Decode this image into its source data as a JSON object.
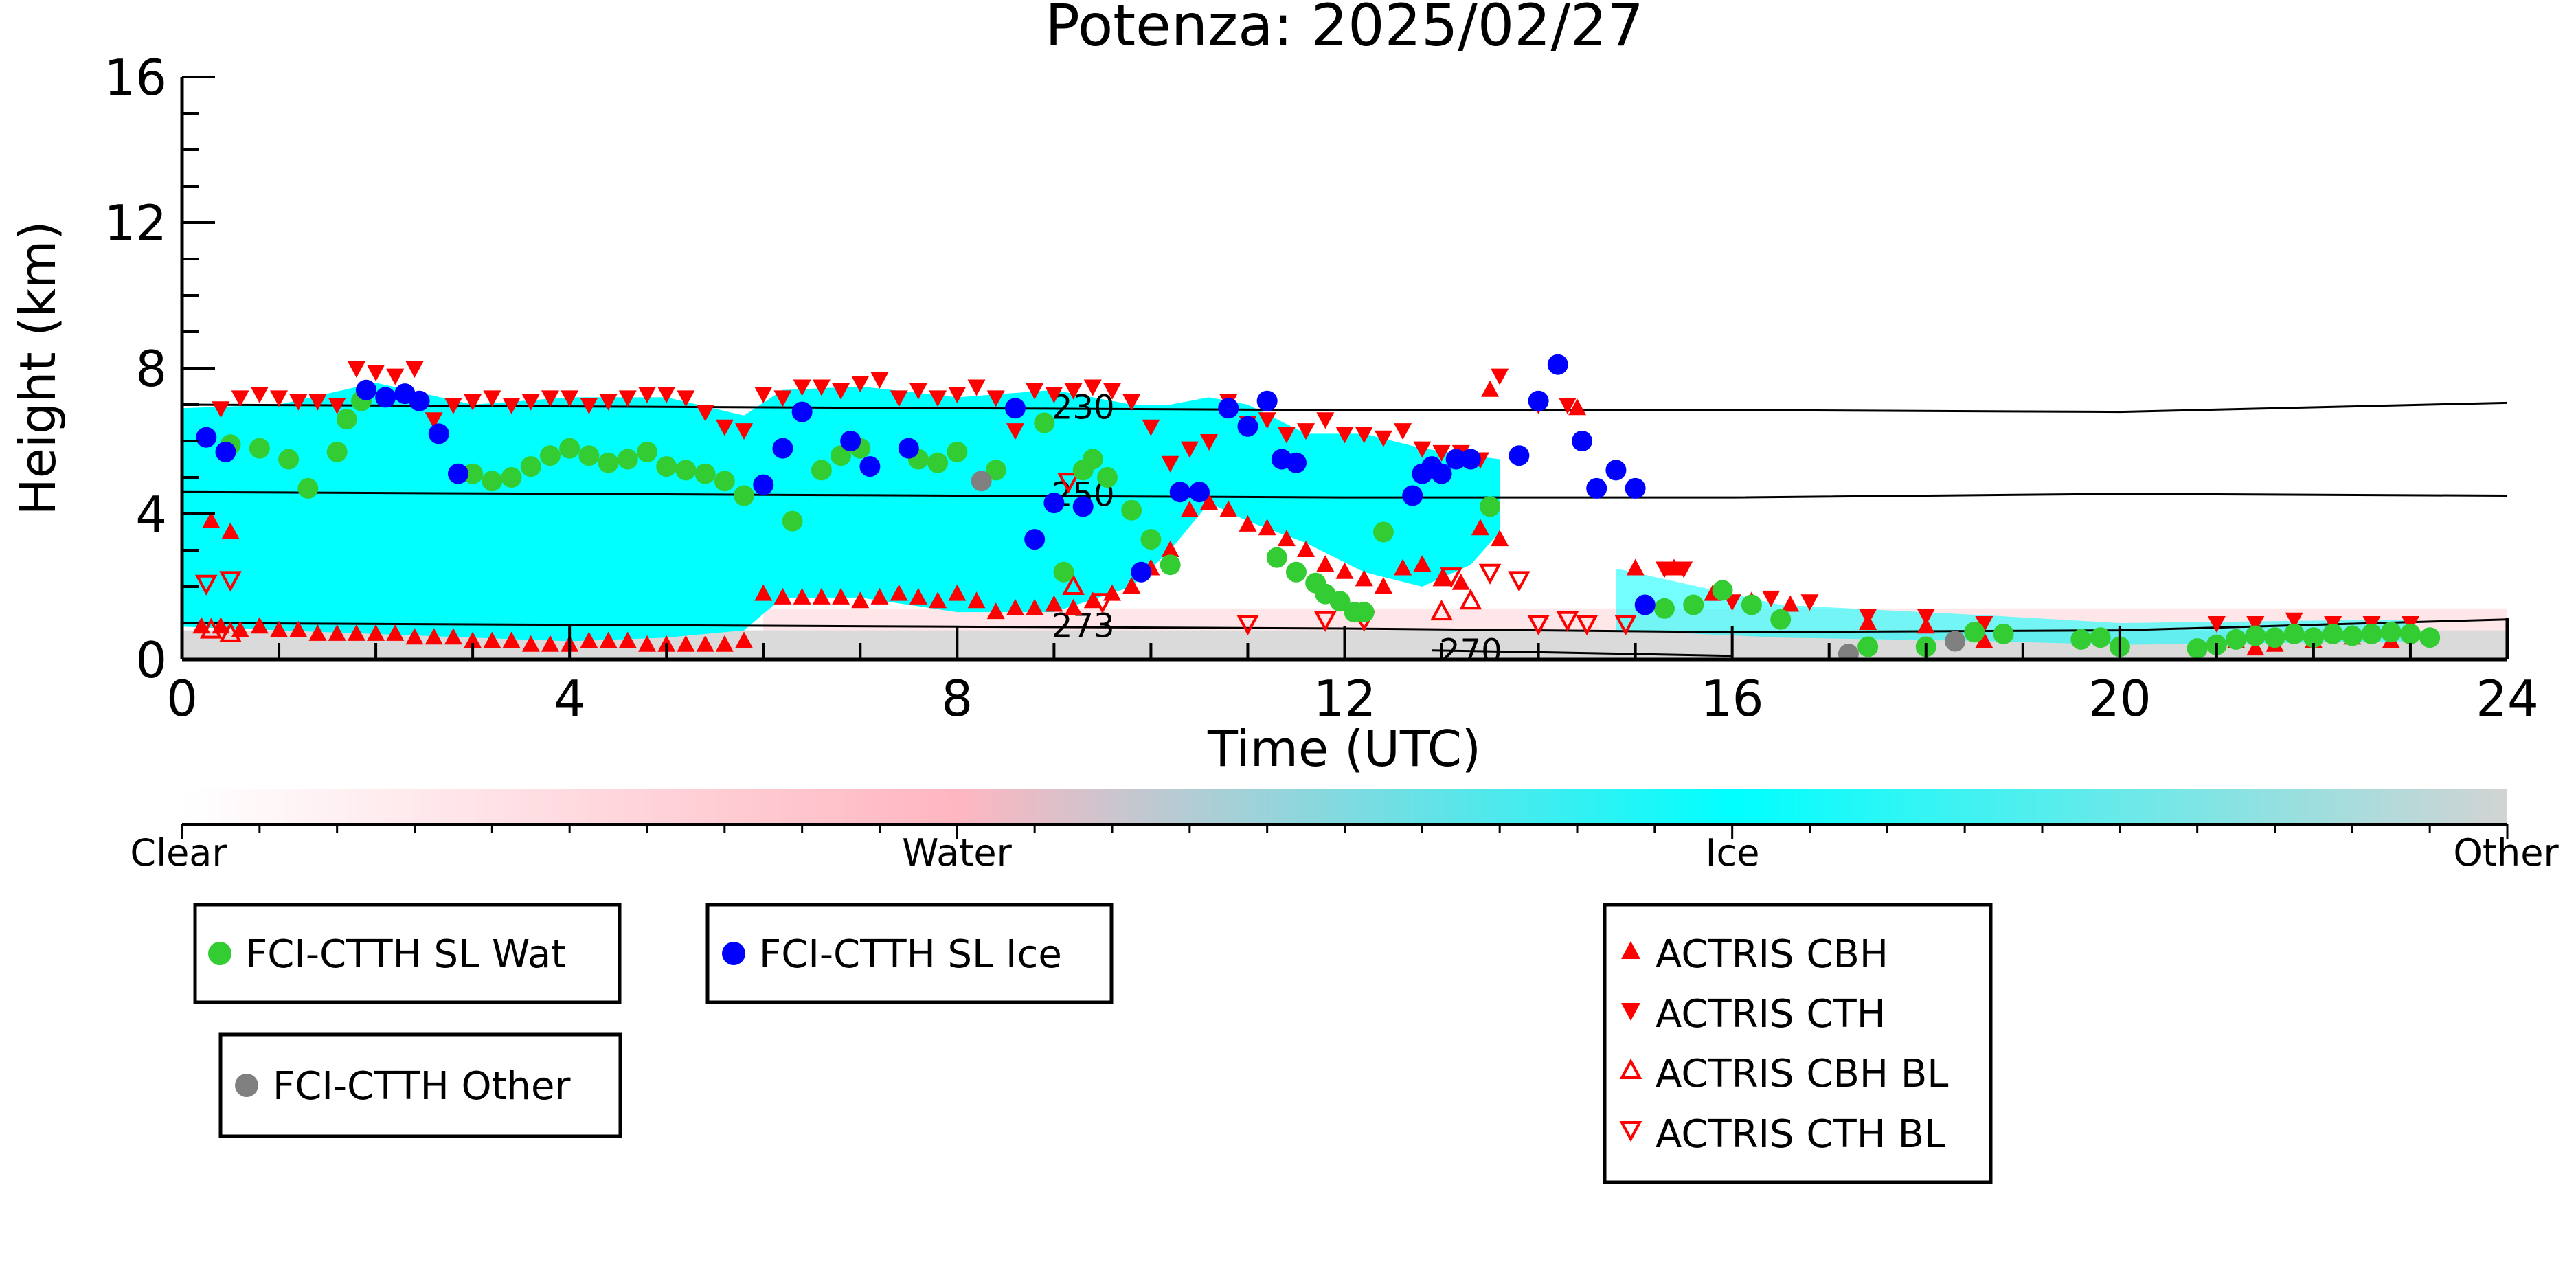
{
  "chart_data": {
    "type": "scatter",
    "title": "Potenza: 2025/02/27",
    "xlabel": "Time (UTC)",
    "ylabel": "Height (km)",
    "xlim": [
      0,
      24
    ],
    "ylim": [
      0,
      16
    ],
    "x_ticks": [
      "0",
      "4",
      "8",
      "12",
      "16",
      "20",
      "24"
    ],
    "y_ticks": [
      "0",
      "4",
      "8",
      "12",
      "16"
    ],
    "grid": false,
    "background_classes": {
      "description_colors": {
        "clear": "#ffffff",
        "water": "#ffb6c1",
        "ice": "#00ffff",
        "other": "#d3d3d3"
      },
      "ice_region": [
        [
          0.0,
          0.9,
          6.9
        ],
        [
          1.0,
          0.8,
          7.0
        ],
        [
          2.0,
          0.7,
          7.6
        ],
        [
          3.0,
          0.6,
          7.0
        ],
        [
          4.0,
          0.5,
          7.2
        ],
        [
          5.0,
          0.6,
          7.2
        ],
        [
          5.8,
          0.8,
          6.7
        ],
        [
          6.2,
          1.7,
          7.4
        ],
        [
          7.0,
          1.7,
          7.5
        ],
        [
          8.0,
          1.3,
          7.2
        ],
        [
          9.0,
          1.3,
          7.4
        ],
        [
          9.8,
          2.0,
          7.0
        ],
        [
          10.2,
          3.0,
          7.0
        ],
        [
          10.6,
          4.3,
          7.2
        ],
        [
          11.0,
          3.8,
          7.0
        ],
        [
          11.6,
          3.2,
          6.2
        ],
        [
          12.2,
          2.4,
          6.2
        ],
        [
          12.8,
          2.0,
          5.8
        ],
        [
          13.3,
          2.6,
          5.6
        ],
        [
          13.6,
          3.5,
          5.5
        ]
      ],
      "low_cloud_band": [
        [
          14.8,
          0.8,
          2.5
        ],
        [
          16.5,
          0.6,
          1.5
        ],
        [
          18.7,
          0.5,
          1.2
        ],
        [
          20.0,
          0.4,
          1.0
        ],
        [
          23.0,
          0.5,
          1.1
        ]
      ],
      "other_band_top_km": 0.8
    },
    "isotherms": [
      {
        "label": "230",
        "x": [
          0,
          4,
          8,
          12,
          16,
          20,
          24
        ],
        "y": [
          7.0,
          6.95,
          6.9,
          6.85,
          6.85,
          6.8,
          7.05
        ]
      },
      {
        "label": "250",
        "x": [
          0,
          4,
          8,
          12,
          16,
          20,
          24
        ],
        "y": [
          4.6,
          4.55,
          4.5,
          4.45,
          4.45,
          4.55,
          4.5
        ]
      },
      {
        "label": "273",
        "x": [
          0,
          4,
          8,
          12,
          16,
          20,
          24
        ],
        "y": [
          1.0,
          0.95,
          0.9,
          0.85,
          0.75,
          0.8,
          1.1
        ]
      },
      {
        "label": "270",
        "x": [
          12.9,
          14.0,
          15.0,
          16.0
        ],
        "y": [
          0.25,
          0.2,
          0.15,
          0.1
        ]
      }
    ],
    "colorbar": {
      "labels": [
        "Clear",
        "Water",
        "Ice",
        "Other"
      ],
      "stops": [
        "#ffffff",
        "#ffb6c1",
        "#00ffff",
        "#d3d3d3"
      ]
    },
    "series": [
      {
        "name": "FCI-CTTH SL Wat",
        "marker": "circle",
        "color": "#33cc33",
        "x": [
          0.5,
          0.8,
          1.1,
          1.3,
          1.6,
          1.7,
          1.85,
          3.0,
          3.2,
          3.4,
          3.6,
          3.8,
          4.0,
          4.2,
          4.4,
          4.6,
          4.8,
          5.0,
          5.2,
          5.4,
          5.6,
          5.8,
          6.3,
          6.6,
          6.8,
          7.0,
          7.6,
          7.8,
          8.0,
          8.4,
          8.9,
          9.1,
          9.3,
          9.4,
          9.55,
          9.8,
          10.0,
          10.2,
          11.3,
          11.5,
          11.7,
          11.8,
          11.95,
          12.1,
          12.2,
          12.4,
          13.5,
          15.3,
          15.6,
          15.9,
          16.2,
          16.5,
          17.4,
          18.0,
          18.5,
          18.8,
          19.6,
          19.8,
          20.0,
          20.8,
          21.0,
          21.2,
          21.4,
          21.6,
          21.8,
          22.0,
          22.2,
          22.4,
          22.6,
          22.8,
          23.0,
          23.2
        ],
        "y": [
          5.9,
          5.8,
          5.5,
          4.7,
          5.7,
          6.6,
          7.1,
          5.1,
          4.9,
          5.0,
          5.3,
          5.6,
          5.8,
          5.6,
          5.4,
          5.5,
          5.7,
          5.3,
          5.2,
          5.1,
          4.9,
          4.5,
          3.8,
          5.2,
          5.6,
          5.8,
          5.5,
          5.4,
          5.7,
          5.2,
          6.5,
          2.4,
          5.2,
          5.5,
          5.0,
          4.1,
          3.3,
          2.6,
          2.8,
          2.4,
          2.1,
          1.8,
          1.6,
          1.3,
          1.3,
          3.5,
          4.2,
          1.4,
          1.5,
          1.9,
          1.5,
          1.1,
          0.35,
          0.35,
          0.75,
          0.7,
          0.55,
          0.6,
          0.35,
          0.3,
          0.4,
          0.55,
          0.65,
          0.6,
          0.7,
          0.6,
          0.7,
          0.65,
          0.7,
          0.75,
          0.7,
          0.6
        ]
      },
      {
        "name": "FCI-CTTH SL Ice",
        "marker": "circle",
        "color": "#0000ff",
        "x": [
          0.25,
          0.45,
          1.9,
          2.1,
          2.3,
          2.45,
          2.65,
          2.85,
          6.0,
          6.2,
          6.4,
          6.9,
          7.1,
          7.5,
          8.6,
          8.8,
          9.0,
          9.3,
          9.9,
          10.3,
          10.5,
          10.8,
          11.0,
          11.2,
          11.35,
          11.5,
          12.7,
          12.8,
          12.9,
          13.0,
          13.15,
          13.3,
          13.8,
          14.0,
          14.2,
          14.45,
          14.6,
          14.8,
          15.0,
          15.1
        ],
        "y": [
          6.1,
          5.7,
          7.4,
          7.2,
          7.3,
          7.1,
          6.2,
          5.1,
          4.8,
          5.8,
          6.8,
          6.0,
          5.3,
          5.8,
          6.9,
          3.3,
          4.3,
          4.2,
          2.4,
          4.6,
          4.6,
          6.9,
          6.4,
          7.1,
          5.5,
          5.4,
          4.5,
          5.1,
          5.3,
          5.1,
          5.5,
          5.5,
          5.6,
          7.1,
          8.1,
          6.0,
          4.7,
          5.2,
          4.7,
          1.5
        ]
      },
      {
        "name": "FCI-CTTH Other",
        "marker": "circle",
        "color": "#808080",
        "x": [
          8.25,
          17.2,
          18.3
        ],
        "y": [
          4.9,
          0.15,
          0.5
        ]
      },
      {
        "name": "ACTRIS CBH",
        "marker": "triangle-up",
        "color": "#ff0000",
        "filled": true,
        "x": [
          0.2,
          0.4,
          0.6,
          0.8,
          1.0,
          1.2,
          1.4,
          1.6,
          1.8,
          2.0,
          2.2,
          2.4,
          2.6,
          2.8,
          3.0,
          3.2,
          3.4,
          3.6,
          3.8,
          4.0,
          4.2,
          4.4,
          4.6,
          4.8,
          5.0,
          5.2,
          5.4,
          5.6,
          5.8,
          6.0,
          6.2,
          6.4,
          6.6,
          6.8,
          7.0,
          7.2,
          7.4,
          7.6,
          7.8,
          8.0,
          8.2,
          8.4,
          8.6,
          8.8,
          9.0,
          9.2,
          9.4,
          9.6,
          9.8,
          10.0,
          10.2,
          10.4,
          10.6,
          10.8,
          11.0,
          11.2,
          11.4,
          11.6,
          11.8,
          12.0,
          12.2,
          12.4,
          12.6,
          12.8,
          13.0,
          13.2,
          13.4,
          13.6,
          0.3,
          0.5,
          13.5,
          14.4,
          15.0,
          15.4,
          15.8,
          16.2,
          16.6,
          17.4,
          18.0,
          18.6,
          20.8,
          21.2,
          21.4,
          21.6,
          22.0,
          22.4,
          22.8
        ],
        "y": [
          0.9,
          0.9,
          0.8,
          0.9,
          0.8,
          0.8,
          0.7,
          0.7,
          0.7,
          0.7,
          0.7,
          0.6,
          0.6,
          0.6,
          0.5,
          0.5,
          0.5,
          0.4,
          0.4,
          0.4,
          0.5,
          0.5,
          0.5,
          0.4,
          0.4,
          0.4,
          0.4,
          0.4,
          0.5,
          1.8,
          1.7,
          1.7,
          1.7,
          1.7,
          1.6,
          1.7,
          1.8,
          1.7,
          1.6,
          1.8,
          1.6,
          1.3,
          1.4,
          1.4,
          1.5,
          1.4,
          1.6,
          1.8,
          2.0,
          2.5,
          3.0,
          4.1,
          4.3,
          4.1,
          3.7,
          3.6,
          3.3,
          3.0,
          2.6,
          2.4,
          2.2,
          2.0,
          2.5,
          2.6,
          2.2,
          2.1,
          3.6,
          3.3,
          3.8,
          3.5,
          7.4,
          6.9,
          2.5,
          2.5,
          1.8,
          1.6,
          1.5,
          1.0,
          0.9,
          0.5,
          0.3,
          0.5,
          0.3,
          0.4,
          0.5,
          0.6,
          0.5
        ]
      },
      {
        "name": "ACTRIS CTH",
        "marker": "triangle-down",
        "color": "#ff0000",
        "filled": true,
        "x": [
          0.4,
          0.6,
          0.8,
          1.0,
          1.2,
          1.4,
          1.6,
          1.8,
          2.0,
          2.2,
          2.4,
          2.6,
          2.8,
          3.0,
          3.2,
          3.4,
          3.6,
          3.8,
          4.0,
          4.2,
          4.4,
          4.6,
          4.8,
          5.0,
          5.2,
          5.4,
          5.6,
          5.8,
          6.0,
          6.2,
          6.4,
          6.6,
          6.8,
          7.0,
          7.2,
          7.4,
          7.6,
          7.8,
          8.0,
          8.2,
          8.4,
          8.6,
          8.8,
          9.0,
          9.2,
          9.4,
          9.6,
          9.8,
          10.0,
          10.2,
          10.4,
          10.6,
          10.8,
          11.0,
          11.2,
          11.4,
          11.6,
          11.8,
          12.0,
          12.2,
          12.4,
          12.6,
          12.8,
          13.0,
          13.2,
          13.4,
          13.6,
          14.0,
          14.3,
          15.3,
          15.5,
          16.0,
          16.4,
          16.8,
          17.4,
          18.0,
          18.6,
          21.0,
          21.4,
          21.8,
          22.2,
          22.6,
          23.0
        ],
        "y": [
          6.9,
          7.2,
          7.3,
          7.2,
          7.1,
          7.1,
          7.0,
          8.0,
          7.9,
          7.8,
          8.0,
          6.6,
          7.0,
          7.1,
          7.2,
          7.0,
          7.1,
          7.2,
          7.2,
          7.0,
          7.1,
          7.2,
          7.3,
          7.3,
          7.2,
          6.8,
          6.4,
          6.3,
          7.3,
          7.2,
          7.5,
          7.5,
          7.4,
          7.6,
          7.7,
          7.2,
          7.4,
          7.2,
          7.3,
          7.5,
          7.2,
          6.3,
          7.4,
          7.3,
          7.4,
          7.5,
          7.4,
          7.1,
          6.4,
          5.4,
          5.8,
          6.0,
          7.1,
          6.5,
          6.6,
          6.2,
          6.3,
          6.6,
          6.2,
          6.2,
          6.1,
          6.3,
          5.8,
          5.7,
          5.7,
          5.5,
          7.8,
          7.0,
          7.0,
          2.5,
          2.5,
          1.6,
          1.7,
          1.6,
          1.2,
          1.2,
          1.0,
          1.0,
          1.0,
          1.1,
          1.0,
          1.0,
          1.0
        ]
      },
      {
        "name": "ACTRIS CBH BL",
        "marker": "triangle-up",
        "color": "#ff0000",
        "filled": false,
        "x": [
          0.3,
          0.5,
          9.2,
          13.0,
          13.3
        ],
        "y": [
          0.8,
          0.7,
          2.0,
          1.3,
          1.6
        ]
      },
      {
        "name": "ACTRIS CTH BL",
        "marker": "triangle-down",
        "color": "#ff0000",
        "filled": false,
        "x": [
          0.25,
          0.5,
          9.15,
          9.5,
          11.0,
          11.8,
          12.2,
          13.1,
          13.5,
          13.8,
          14.0,
          14.3,
          14.5,
          14.9
        ],
        "y": [
          2.1,
          2.2,
          4.9,
          1.6,
          1.0,
          1.1,
          1.1,
          2.3,
          2.4,
          2.2,
          1.0,
          1.1,
          1.0,
          1.0
        ]
      }
    ],
    "legend": {
      "boxes": [
        [
          "FCI-CTTH SL Wat"
        ],
        [
          "FCI-CTTH SL Ice"
        ],
        [
          "FCI-CTTH Other"
        ],
        [
          "ACTRIS CBH",
          "ACTRIS CTH",
          "ACTRIS CBH BL",
          "ACTRIS CTH BL"
        ]
      ]
    }
  }
}
